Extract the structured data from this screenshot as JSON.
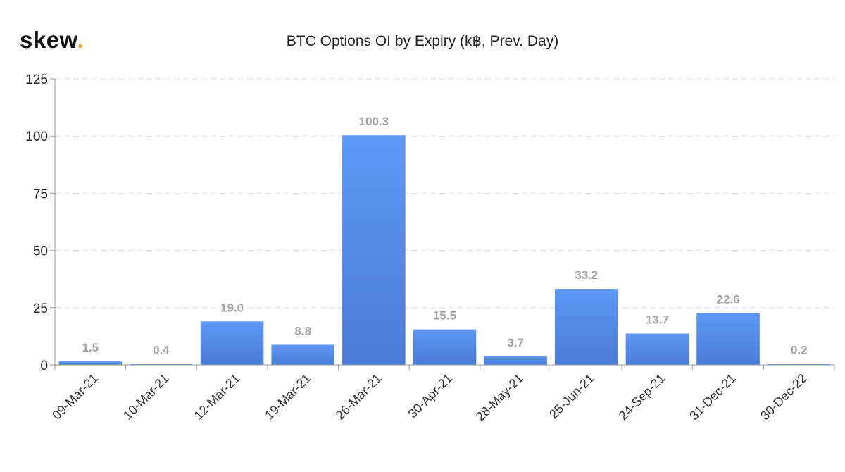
{
  "brand": {
    "name": "skew",
    "dot": "."
  },
  "chart_data": {
    "type": "bar",
    "title": "BTC Options OI by Expiry (k฿, Prev. Day)",
    "xlabel": "",
    "ylabel": "",
    "categories": [
      "09-Mar-21",
      "10-Mar-21",
      "12-Mar-21",
      "19-Mar-21",
      "26-Mar-21",
      "30-Apr-21",
      "28-May-21",
      "25-Jun-21",
      "24-Sep-21",
      "31-Dec-21",
      "30-Dec-22"
    ],
    "values": [
      1.5,
      0.4,
      19.0,
      8.8,
      100.3,
      15.5,
      3.7,
      33.2,
      13.7,
      22.6,
      0.2
    ],
    "data_labels": [
      "1.5",
      "0.4",
      "19.0",
      "8.8",
      "100.3",
      "15.5",
      "3.7",
      "33.2",
      "13.7",
      "22.6",
      "0.2"
    ],
    "ylim": [
      0,
      125
    ],
    "yticks": [
      0,
      25,
      50,
      75,
      100,
      125
    ],
    "grid": true,
    "legend": "none",
    "colors": {
      "bar_top": "#5e97f6",
      "bar_bottom": "#4a7cd4",
      "label": "#a3a3a3",
      "grid": "#dddddd",
      "brand_dot": "#f5a623"
    }
  }
}
